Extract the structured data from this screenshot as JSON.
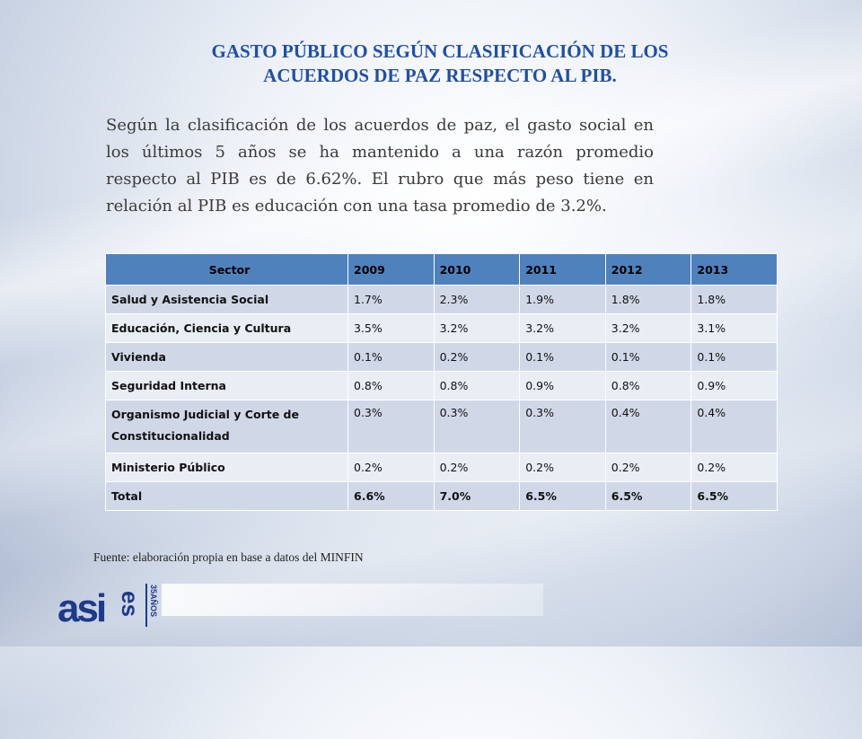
{
  "title": {
    "line1": "GASTO PÚBLICO SEGÚN CLASIFICACIÓN DE LOS",
    "line2": "ACUERDOS DE PAZ RESPECTO AL PIB."
  },
  "paragraph": "Según la clasificación de los acuerdos de paz, el gasto social en los últimos 5 años se ha mantenido a una razón promedio respecto al PIB es de 6.62%. El rubro que más peso tiene en relación al PIB es educación con una tasa promedio de 3.2%.",
  "table": {
    "headers": [
      "Sector",
      "2009",
      "2010",
      "2011",
      "2012",
      "2013"
    ],
    "rows": [
      {
        "label": "Salud y Asistencia Social",
        "values": [
          "1.7%",
          "2.3%",
          "1.9%",
          "1.8%",
          "1.8%"
        ]
      },
      {
        "label": "Educación, Ciencia y Cultura",
        "values": [
          "3.5%",
          "3.2%",
          "3.2%",
          "3.2%",
          "3.1%"
        ]
      },
      {
        "label": "Vivienda",
        "values": [
          "0.1%",
          "0.2%",
          "0.1%",
          "0.1%",
          "0.1%"
        ]
      },
      {
        "label": "Seguridad Interna",
        "values": [
          "0.8%",
          "0.8%",
          "0.9%",
          "0.8%",
          "0.9%"
        ]
      },
      {
        "label": "Organismo Judicial y Corte de Constitucionalidad",
        "values": [
          "0.3%",
          "0.3%",
          "0.3%",
          "0.4%",
          "0.4%"
        ]
      },
      {
        "label": "Ministerio Público",
        "values": [
          "0.2%",
          "0.2%",
          "0.2%",
          "0.2%",
          "0.2%"
        ]
      },
      {
        "label": "Total",
        "values": [
          "6.6%",
          "7.0%",
          "6.5%",
          "6.5%",
          "6.5%"
        ]
      }
    ]
  },
  "source": "Fuente: elaboración propia en base a datos del MINFIN",
  "logo": {
    "text": "asies",
    "tagline": "35AÑOS",
    "color": "#1e3a8a"
  },
  "colors": {
    "title": "#1f4fa8",
    "header_bg": "#4f81bd",
    "row_odd": "#d0d8e8",
    "row_even": "#e9edf4"
  }
}
